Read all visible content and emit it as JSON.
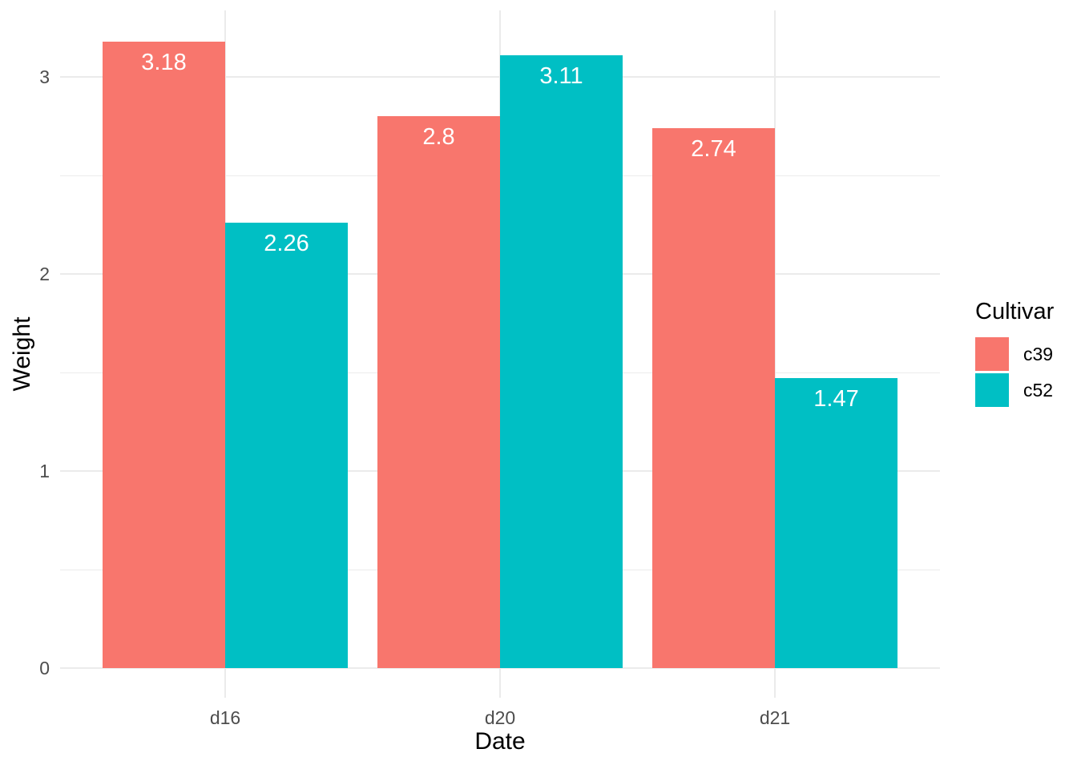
{
  "chart_data": {
    "type": "bar",
    "title": "",
    "categories": [
      "d16",
      "d20",
      "d21"
    ],
    "series": [
      {
        "name": "c39",
        "color": "#F8766D",
        "values": [
          3.18,
          2.8,
          2.74
        ],
        "value_labels": [
          "3.18",
          "2.8",
          "2.74"
        ]
      },
      {
        "name": "c52",
        "color": "#00BFC4",
        "values": [
          2.26,
          3.11,
          1.47
        ],
        "value_labels": [
          "2.26",
          "3.11",
          "1.47"
        ]
      }
    ],
    "xlabel": "Date",
    "ylabel": "Weight",
    "ylim": [
      -0.16,
      3.34
    ],
    "y_ticks": [
      0,
      1,
      2,
      3
    ],
    "y_minor_ticks": [
      0.5,
      1.5,
      2.5
    ],
    "grid": {
      "major": true,
      "minor": true
    },
    "legend": {
      "title": "Cultivar",
      "position": "right",
      "entries": [
        "c39",
        "c52"
      ]
    }
  },
  "style": {
    "background": "#FFFFFF",
    "grid_color": "#EBEBEB",
    "tick_label_color": "#4D4D4D",
    "title_color": "#000000",
    "bar_label_color": "#FFFFFF",
    "series_colors": {
      "c39": "#F8766D",
      "c52": "#00BFC4"
    }
  }
}
